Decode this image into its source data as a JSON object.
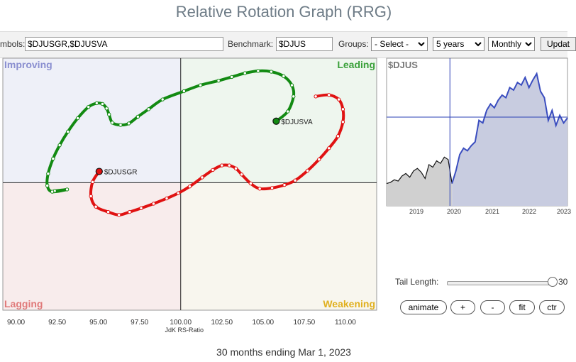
{
  "title": "Relative Rotation Graph (RRG)",
  "toolbar": {
    "symbols_label": "mbols:",
    "symbols_value": "$DJUSGR,$DJUSVA",
    "benchmark_label": "Benchmark:",
    "benchmark_value": "$DJUS",
    "groups_label": "Groups:",
    "groups_selected": "- Select -",
    "period_selected": "5 years",
    "frequency_selected": "Monthly",
    "update_label": "Updat"
  },
  "rrg": {
    "quadrants": {
      "improving": "Improving",
      "leading": "Leading",
      "lagging": "Lagging",
      "weakening": "Weakening"
    },
    "colors": {
      "improving_bg": "#eef0f8",
      "leading_bg": "#eef6ee",
      "lagging_bg": "#f8ecec",
      "weakening_bg": "#f8f6ee",
      "improving_text": "#8a8fd0",
      "leading_text": "#3aa03a",
      "lagging_text": "#e07a7a",
      "weakening_text": "#e0b020"
    },
    "xlabel": "JdK RS-Ratio",
    "xlim": [
      89.2,
      111.9
    ],
    "x_ticks": [
      "90.00",
      "92.50",
      "95.00",
      "97.50",
      "100.00",
      "102.50",
      "105.00",
      "107.50",
      "110.00"
    ],
    "x_tick_values": [
      90,
      92.5,
      95,
      97.5,
      100,
      102.5,
      105,
      107.5,
      110
    ],
    "ylim": [
      91.5,
      108.3
    ],
    "series": [
      {
        "name": "$DJUSVA",
        "color": "#128a12",
        "points": [
          [
            92.35,
            99.45
          ],
          [
            93.1,
            99.55
          ],
          [
            92.2,
            99.4
          ],
          [
            91.9,
            99.8
          ],
          [
            91.95,
            100.6
          ],
          [
            92.25,
            101.6
          ],
          [
            92.65,
            102.5
          ],
          [
            93.15,
            103.4
          ],
          [
            93.75,
            104.3
          ],
          [
            94.4,
            105.05
          ],
          [
            94.9,
            105.3
          ],
          [
            95.25,
            105.25
          ],
          [
            95.5,
            104.95
          ],
          [
            95.65,
            104.55
          ],
          [
            95.85,
            104.0
          ],
          [
            96.35,
            103.85
          ],
          [
            96.85,
            103.95
          ],
          [
            97.4,
            104.4
          ],
          [
            98.05,
            104.9
          ],
          [
            98.9,
            105.55
          ],
          [
            100.2,
            106.1
          ],
          [
            101.2,
            106.5
          ],
          [
            102.3,
            106.8
          ],
          [
            103.1,
            107.05
          ],
          [
            103.9,
            107.3
          ],
          [
            104.7,
            107.45
          ],
          [
            105.5,
            107.4
          ],
          [
            106.25,
            107.1
          ],
          [
            106.75,
            106.5
          ],
          [
            106.85,
            105.75
          ],
          [
            106.5,
            104.75
          ],
          [
            105.8,
            104.1
          ]
        ]
      },
      {
        "name": "$DJUSGR",
        "color": "#e01212",
        "points": [
          [
            108.2,
            105.75
          ],
          [
            109.0,
            105.85
          ],
          [
            109.6,
            105.55
          ],
          [
            109.85,
            104.9
          ],
          [
            109.85,
            104.05
          ],
          [
            109.55,
            103.1
          ],
          [
            109.0,
            102.3
          ],
          [
            108.4,
            101.55
          ],
          [
            107.7,
            100.8
          ],
          [
            106.95,
            100.15
          ],
          [
            106.3,
            99.85
          ],
          [
            105.55,
            99.65
          ],
          [
            104.8,
            99.6
          ],
          [
            104.25,
            99.95
          ],
          [
            103.7,
            100.55
          ],
          [
            103.35,
            100.95
          ],
          [
            102.95,
            101.15
          ],
          [
            102.5,
            101.15
          ],
          [
            101.95,
            100.85
          ],
          [
            101.3,
            100.35
          ],
          [
            100.55,
            99.75
          ],
          [
            99.85,
            99.3
          ],
          [
            99.15,
            98.95
          ],
          [
            98.35,
            98.6
          ],
          [
            97.6,
            98.3
          ],
          [
            96.9,
            98.05
          ],
          [
            96.25,
            97.85
          ],
          [
            95.6,
            98.05
          ],
          [
            94.85,
            98.4
          ],
          [
            94.55,
            99.1
          ],
          [
            94.65,
            100.05
          ],
          [
            95.05,
            100.75
          ]
        ]
      }
    ]
  },
  "benchmark_chart": {
    "label": "$DJUS",
    "x_ticks": [
      "2019",
      "2020",
      "2021",
      "2022",
      "2023"
    ],
    "fill_color": "#c8cce0",
    "fill_color_left": "#d0d0d0",
    "line_color": "#3a4dbf",
    "cursor_value": 0.35
  },
  "controls": {
    "tail_length_label": "Tail Length:",
    "tail_length_value": "30",
    "buttons": [
      "animate",
      "+",
      "-",
      "fit",
      "ctr"
    ]
  },
  "caption": "30 months ending Mar 1, 2023",
  "chart_data": {
    "type": "scatter",
    "title": "Relative Rotation Graph (RRG)",
    "xlabel": "JdK RS-Ratio",
    "xlim": [
      89.2,
      111.9
    ],
    "x_ticks": [
      90,
      92.5,
      95,
      97.5,
      100,
      102.5,
      105,
      107.5,
      110
    ],
    "series": [
      {
        "name": "$DJUSVA",
        "latest": [
          105.8,
          104.1
        ]
      },
      {
        "name": "$DJUSGR",
        "latest": [
          95.05,
          100.75
        ]
      }
    ],
    "quadrants": [
      "Improving",
      "Leading",
      "Lagging",
      "Weakening"
    ]
  }
}
